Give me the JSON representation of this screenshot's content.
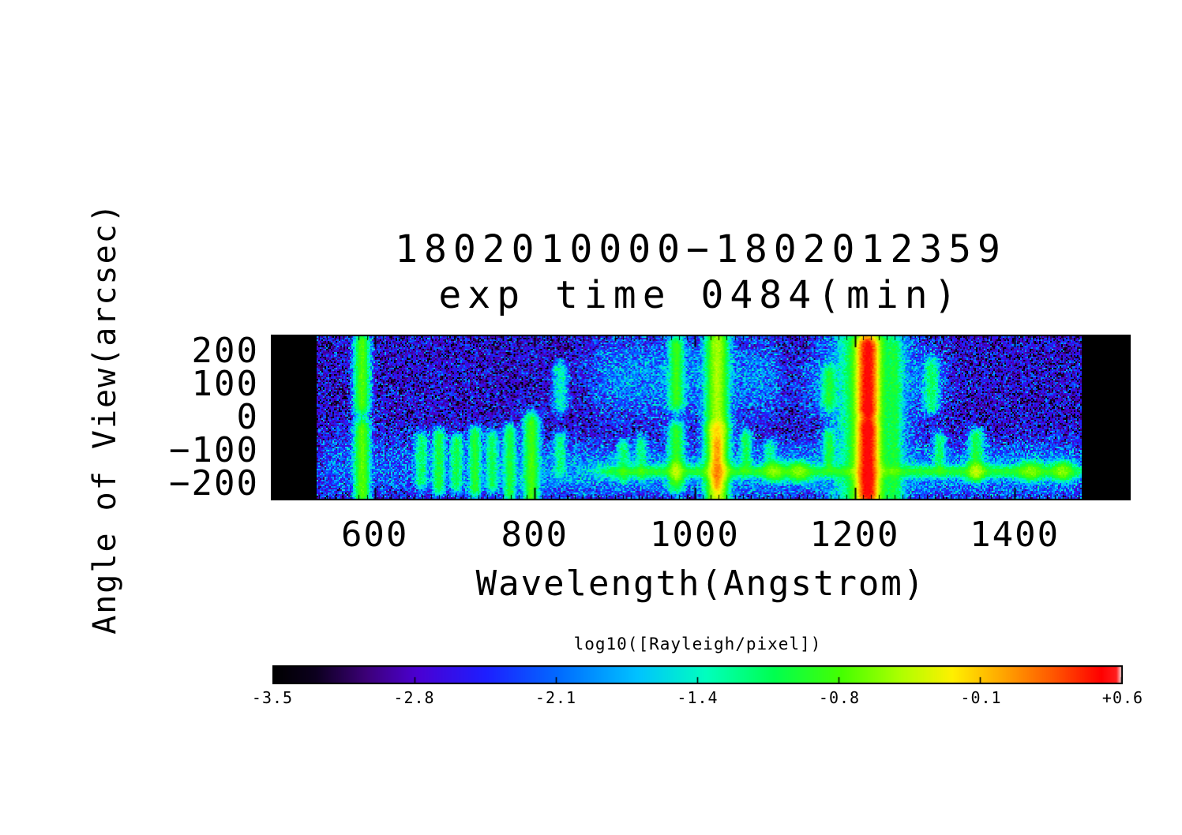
{
  "chart_data": {
    "type": "heatmap",
    "title_line1": "1802010000−1802012359",
    "title_line2": "exp time 0484(min)",
    "xlabel": "Wavelength(Angstrom)",
    "ylabel": "Angle of View(arcsec)",
    "x_ticks": [
      600,
      800,
      1000,
      1200,
      1400
    ],
    "y_ticks": [
      200,
      100,
      0,
      -100,
      -200
    ],
    "y_tick_labels": [
      "200",
      "100",
      "0",
      "−100",
      "−200"
    ],
    "x_range": [
      470,
      1545
    ],
    "y_range": [
      -250,
      250
    ],
    "detector_wl_range": [
      528,
      1484
    ],
    "value_scale": {
      "label": "log10([Rayleigh/pixel])",
      "min": -3.5,
      "max": 0.6,
      "tick_labels": [
        "-3.5",
        "-2.8",
        "-2.1",
        "-1.4",
        "-0.8",
        "-0.1",
        "+0.6"
      ]
    },
    "background_log10": -2.75,
    "noise_sigma": 0.41,
    "colormap": [
      [
        0.0,
        0,
        0,
        0
      ],
      [
        0.05,
        12,
        0,
        30
      ],
      [
        0.11,
        60,
        0,
        120
      ],
      [
        0.17,
        75,
        0,
        210
      ],
      [
        0.25,
        30,
        30,
        255
      ],
      [
        0.34,
        0,
        110,
        255
      ],
      [
        0.43,
        0,
        195,
        255
      ],
      [
        0.51,
        0,
        255,
        190
      ],
      [
        0.59,
        0,
        255,
        80
      ],
      [
        0.67,
        70,
        255,
        0
      ],
      [
        0.74,
        175,
        255,
        0
      ],
      [
        0.8,
        255,
        240,
        0
      ],
      [
        0.86,
        255,
        165,
        0
      ],
      [
        0.92,
        255,
        85,
        0
      ],
      [
        0.975,
        255,
        0,
        0
      ],
      [
        0.993,
        255,
        30,
        30
      ],
      [
        1.0,
        255,
        255,
        255
      ]
    ],
    "features": [
      {
        "wl": 584,
        "sw": 5,
        "a0": 40,
        "a1": 225,
        "sa": 18,
        "v": -0.75
      },
      {
        "wl": 584,
        "sw": 5,
        "a0": -230,
        "a1": -35,
        "sa": 18,
        "v": -0.72
      },
      {
        "wl": 658,
        "sw": 4,
        "a0": -190,
        "a1": -70,
        "sa": 14,
        "v": -1.15
      },
      {
        "wl": 680,
        "sw": 4,
        "a0": -210,
        "a1": -60,
        "sa": 14,
        "v": -1.0
      },
      {
        "wl": 702,
        "sw": 4,
        "a0": -200,
        "a1": -75,
        "sa": 14,
        "v": -1.05
      },
      {
        "wl": 725,
        "sw": 4,
        "a0": -215,
        "a1": -55,
        "sa": 14,
        "v": -0.95
      },
      {
        "wl": 747,
        "sw": 4,
        "a0": -200,
        "a1": -65,
        "sa": 14,
        "v": -1.1
      },
      {
        "wl": 769,
        "sw": 4,
        "a0": -230,
        "a1": -45,
        "sa": 14,
        "v": -1.0
      },
      {
        "wl": 796,
        "sw": 5,
        "a0": -255,
        "a1": -20,
        "sa": 18,
        "v": -0.8
      },
      {
        "wl": 832,
        "sw": 5,
        "a0": 45,
        "a1": 140,
        "sa": 18,
        "v": -1.45
      },
      {
        "wl": 832,
        "sw": 4,
        "a0": -160,
        "a1": -70,
        "sa": 14,
        "v": -1.25
      },
      {
        "wl": 911,
        "sw": 4,
        "a0": -180,
        "a1": -90,
        "sa": 14,
        "v": -1.2
      },
      {
        "wl": 933,
        "sw": 4,
        "a0": -170,
        "a1": -80,
        "sa": 14,
        "v": -1.25
      },
      {
        "wl": 977,
        "sw": 5,
        "a0": 50,
        "a1": 215,
        "sa": 18,
        "v": -0.85
      },
      {
        "wl": 977,
        "sw": 5,
        "a0": -200,
        "a1": -40,
        "sa": 16,
        "v": -0.9
      },
      {
        "wl": 1028,
        "sw": 7,
        "a0": -30,
        "a1": 230,
        "sa": 22,
        "v": -0.5
      },
      {
        "wl": 1028,
        "sw": 7,
        "a0": -245,
        "a1": -40,
        "sa": 18,
        "v": -0.35
      },
      {
        "wl": 1028,
        "sw": 4,
        "a0": -200,
        "a1": -80,
        "sa": 14,
        "v": -0.18
      },
      {
        "wl": 1064,
        "sw": 4,
        "a0": -150,
        "a1": -60,
        "sa": 13,
        "v": -1.1
      },
      {
        "wl": 1094,
        "sw": 4,
        "a0": -160,
        "a1": -90,
        "sa": 13,
        "v": -1.3
      },
      {
        "wl": 1168,
        "sw": 5,
        "a0": 50,
        "a1": 130,
        "sa": 16,
        "v": -1.0
      },
      {
        "wl": 1168,
        "sw": 4,
        "a0": -140,
        "a1": -60,
        "sa": 14,
        "v": -1.05
      },
      {
        "wl": 1216,
        "sw": 6,
        "a0": 30,
        "a1": 210,
        "sa": 20,
        "v": 0.5
      },
      {
        "wl": 1216,
        "sw": 6,
        "a0": -225,
        "a1": -35,
        "sa": 20,
        "v": 0.52
      },
      {
        "wl": 1216,
        "sw": 5,
        "a0": -35,
        "a1": 30,
        "sa": 14,
        "v": -0.1
      },
      {
        "wl": 1216,
        "sw": 13,
        "a0": -235,
        "a1": 222,
        "sa": 26,
        "v": -0.55
      },
      {
        "wl": 1216,
        "sw": 24,
        "a0": -240,
        "a1": 228,
        "sa": 32,
        "v": -1.35
      },
      {
        "wl": 1250,
        "sw": 5,
        "a0": -230,
        "a1": 200,
        "sa": 28,
        "v": -1.15
      },
      {
        "wl": 1296,
        "sw": 5,
        "a0": 40,
        "a1": 150,
        "sa": 16,
        "v": -1.15
      },
      {
        "wl": 1306,
        "sw": 4,
        "a0": -150,
        "a1": -70,
        "sa": 14,
        "v": -1.2
      },
      {
        "wl": 1352,
        "sw": 5,
        "a0": -170,
        "a1": -60,
        "sa": 14,
        "v": -1.05
      },
      {
        "wl": 977,
        "sw": 6,
        "a0": -175,
        "a1": -150,
        "sa": 12,
        "v": -0.8
      },
      {
        "wl": 1030,
        "sw": 8,
        "a0": -175,
        "a1": -150,
        "sa": 12,
        "v": -0.6
      },
      {
        "wl": 1100,
        "sw": 8,
        "a0": -174,
        "a1": -152,
        "sa": 12,
        "v": -0.85
      },
      {
        "wl": 1130,
        "sw": 8,
        "a0": -174,
        "a1": -152,
        "sa": 12,
        "v": -0.8
      },
      {
        "wl": 1216,
        "sw": 8,
        "a0": -175,
        "a1": -150,
        "sa": 12,
        "v": -0.55
      },
      {
        "wl": 1352,
        "sw": 7,
        "a0": -172,
        "a1": -152,
        "sa": 12,
        "v": -0.75
      },
      {
        "wl": 1420,
        "sw": 9,
        "a0": -172,
        "a1": -152,
        "sa": 12,
        "v": -0.85
      },
      {
        "wl": 1460,
        "sw": 8,
        "a0": -172,
        "a1": -152,
        "sa": 12,
        "v": -0.8
      }
    ],
    "bands": [
      {
        "a": -163,
        "sa": 10,
        "wl0": 885,
        "wl1": 1482,
        "v": -0.98
      },
      {
        "a": -160,
        "sa": 45,
        "wl0": 760,
        "wl1": 1482,
        "v": -1.95
      },
      {
        "a": -150,
        "sa": 55,
        "wl0": 532,
        "wl1": 770,
        "v": -2.3
      },
      {
        "a": 120,
        "sa": 70,
        "wl0": 880,
        "wl1": 1100,
        "v": -2.05
      },
      {
        "a": 110,
        "sa": 60,
        "wl0": 1140,
        "wl1": 1310,
        "v": -2.2
      }
    ]
  }
}
